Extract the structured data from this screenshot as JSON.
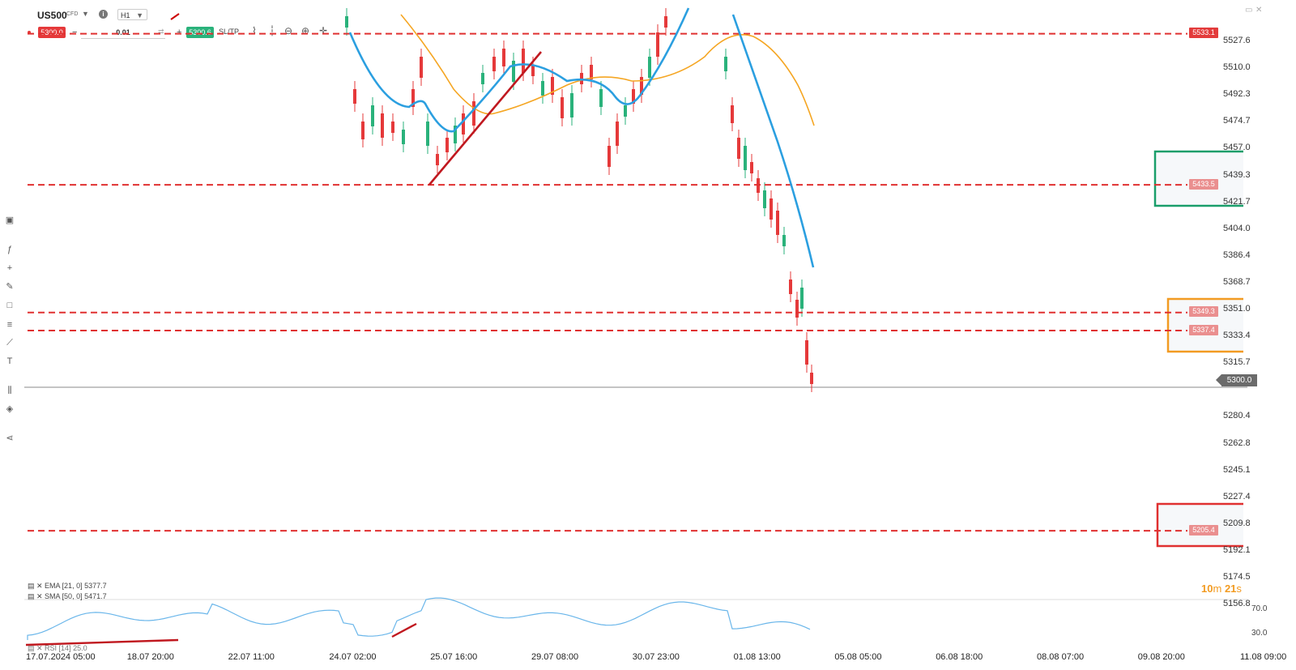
{
  "header": {
    "symbol": "US500",
    "instrument_type": "CFD",
    "timeframe": "H1",
    "sell_price": "5300.0",
    "buy_price": "5300.6",
    "quantity": "0.01",
    "minus_label": "−",
    "plus_label": "+",
    "sltp_label": "SL/TP"
  },
  "price_axis": [
    "5527.6",
    "5510.0",
    "5492.3",
    "5474.7",
    "5457.0",
    "5439.3",
    "5421.7",
    "5404.0",
    "5386.4",
    "5368.7",
    "5351.0",
    "5333.4",
    "5315.7",
    "5300.0",
    "5280.4",
    "5262.8",
    "5245.1",
    "5227.4",
    "5209.8",
    "5192.1",
    "5174.5",
    "5156.8"
  ],
  "time_axis": [
    "17.07.2024 05:00",
    "18.07 20:00",
    "22.07 11:00",
    "24.07 02:00",
    "25.07 16:00",
    "29.07 08:00",
    "30.07 23:00",
    "01.08 13:00",
    "05.08 05:00",
    "06.08 18:00",
    "08.08 07:00",
    "09.08 20:00",
    "11.08 09:00"
  ],
  "current_price": "5300.0",
  "levels": [
    {
      "label": "5533.1",
      "style": "solid"
    },
    {
      "label": "5433.5",
      "style": "light"
    },
    {
      "label": "5349.3",
      "style": "light"
    },
    {
      "label": "5337.4",
      "style": "light"
    },
    {
      "label": "5205.4",
      "style": "light"
    }
  ],
  "indicators": {
    "ema": "EMA [21, 0] 5377.7",
    "sma": "SMA [50, 0] 5471.7",
    "rsi": "RSI [14] 25.0"
  },
  "rsi_axis": {
    "high": "70.0",
    "low": "30.0"
  },
  "timer": {
    "minutes": "10",
    "m": "m",
    "seconds": "21",
    "s": "s"
  },
  "colors": {
    "sell": "#e5393a",
    "buy": "#2ab27b",
    "level_line": "#e03030",
    "ema": "#2b9fe0",
    "sma": "#f5a623",
    "candle_up": "#2ab27b",
    "candle_down": "#e5393a",
    "zone_green": "#1a9e6a",
    "zone_orange": "#f29b22",
    "zone_red": "#e03030",
    "rsi_line": "#6ab6ea"
  },
  "icons": [
    "info-icon",
    "chevron-down-icon",
    "crosshair-icon",
    "zoom-in-icon",
    "zoom-out-icon",
    "candles-icon",
    "line-chart-icon",
    "function-icon",
    "plus-icon",
    "pencil-icon",
    "rectangle-icon",
    "fibonacci-icon",
    "trendline-icon",
    "text-icon",
    "chart-type-icon",
    "layers-icon",
    "share-icon",
    "minimize-icon",
    "close-icon"
  ]
}
